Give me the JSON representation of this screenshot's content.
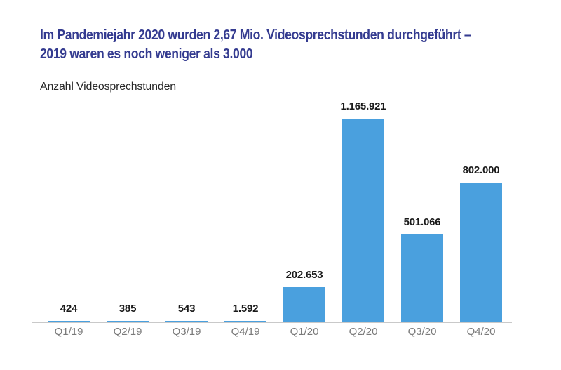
{
  "page": {
    "title_lines": [
      "Im Pandemiejahr 2020 wurden 2,67 Mio. Videosprechstunden durchgeführt –",
      "2019 waren es noch weniger als 3.000"
    ],
    "subtitle": "Anzahl Videosprechstunden"
  },
  "colors": {
    "title": "#343B90",
    "bar": "#4AA0DE",
    "axis_line": "#C9C9C9",
    "tick_label": "#7A7A7A",
    "value_label": "#1A1A1A",
    "background": "#FFFFFF"
  },
  "chart_data": {
    "type": "bar",
    "title": "Im Pandemiejahr 2020 wurden 2,67 Mio. Videosprechstunden durchgeführt – 2019 waren es noch weniger als 3.000",
    "ylabel": "Anzahl Videosprechstunden",
    "xlabel": "",
    "categories": [
      "Q1/19",
      "Q2/19",
      "Q3/19",
      "Q4/19",
      "Q1/20",
      "Q2/20",
      "Q3/20",
      "Q4/20"
    ],
    "values": [
      424,
      385,
      543,
      1592,
      202653,
      1165921,
      501066,
      802000
    ],
    "value_labels": [
      "424",
      "385",
      "543",
      "1.592",
      "202.653",
      "1.165.921",
      "501.066",
      "802.000"
    ],
    "ylim": [
      0,
      1200000
    ],
    "grid": false,
    "legend": "none",
    "bar_color": "#4AA0DE"
  }
}
